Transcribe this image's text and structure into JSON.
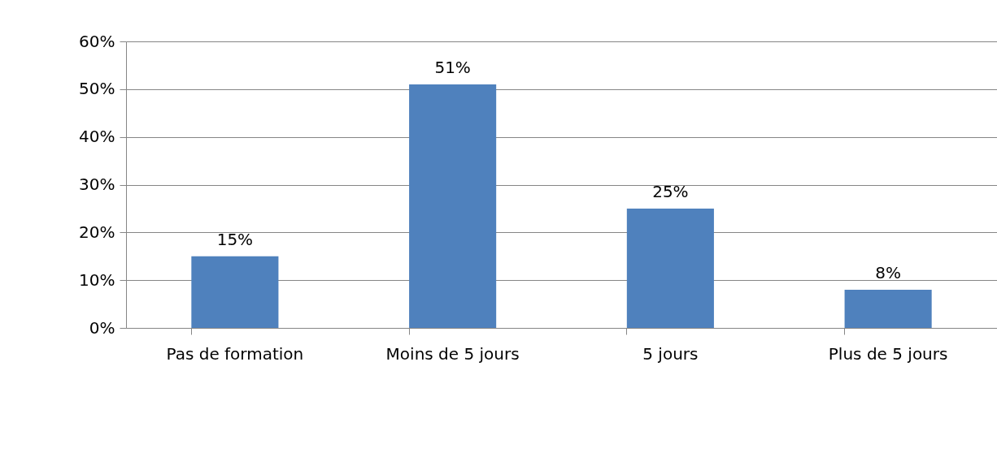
{
  "chart_data": {
    "type": "bar",
    "categories": [
      "Pas de formation",
      "Moins de 5 jours",
      "5 jours",
      "Plus de 5 jours"
    ],
    "values": [
      15,
      51,
      25,
      8
    ],
    "value_labels": [
      "15%",
      "51%",
      "25%",
      "8%"
    ],
    "color": "#4f81bd",
    "ylim": [
      0,
      60
    ],
    "yticks": [
      {
        "value": 0,
        "label": "0%"
      },
      {
        "value": 10,
        "label": "10%"
      },
      {
        "value": 20,
        "label": "20%"
      },
      {
        "value": 30,
        "label": "30%"
      },
      {
        "value": 40,
        "label": "40%"
      },
      {
        "value": 50,
        "label": "50%"
      },
      {
        "value": 60,
        "label": "60%"
      }
    ],
    "grid": "y"
  }
}
